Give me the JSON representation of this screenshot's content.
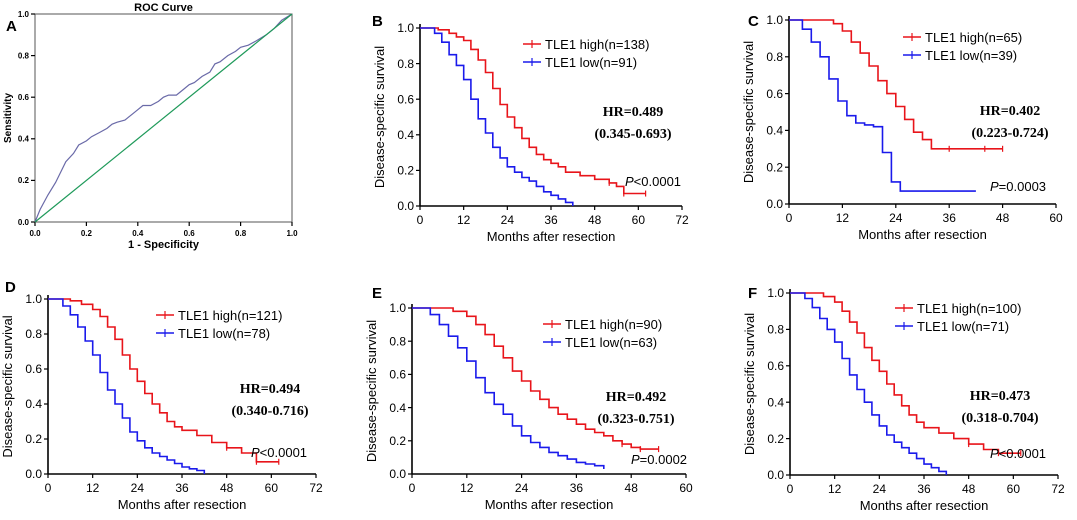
{
  "colors": {
    "high": "#e8141a",
    "low": "#1a1aeb",
    "roc": "#6a6aa8",
    "diag": "#1f9a5a",
    "axis": "#000000"
  },
  "panels": [
    {
      "letter": "A",
      "chart_data": {
        "type": "line",
        "title": "ROC Curve",
        "xlabel": "1 - Specificity",
        "ylabel": "Sensitivity",
        "xlim": [
          0,
          1
        ],
        "ylim": [
          0,
          1
        ],
        "xticks": [
          "0.0",
          "0.2",
          "0.4",
          "0.6",
          "0.8",
          "1.0"
        ],
        "yticks": [
          "0.0",
          "0.2",
          "0.4",
          "0.6",
          "0.8",
          "1.0"
        ],
        "series": [
          {
            "name": "ROC",
            "color": "roc",
            "x": [
              0,
              0.02,
              0.05,
              0.08,
              0.1,
              0.12,
              0.15,
              0.17,
              0.2,
              0.22,
              0.25,
              0.28,
              0.3,
              0.32,
              0.35,
              0.38,
              0.4,
              0.42,
              0.45,
              0.48,
              0.5,
              0.52,
              0.55,
              0.58,
              0.6,
              0.62,
              0.65,
              0.68,
              0.7,
              0.72,
              0.75,
              0.78,
              0.8,
              0.83,
              0.86,
              0.9,
              0.93,
              0.96,
              1.0
            ],
            "y": [
              0,
              0.06,
              0.13,
              0.19,
              0.24,
              0.29,
              0.33,
              0.37,
              0.39,
              0.41,
              0.43,
              0.45,
              0.47,
              0.48,
              0.49,
              0.52,
              0.54,
              0.56,
              0.56,
              0.58,
              0.6,
              0.61,
              0.61,
              0.64,
              0.66,
              0.67,
              0.7,
              0.72,
              0.76,
              0.77,
              0.8,
              0.82,
              0.84,
              0.85,
              0.87,
              0.9,
              0.93,
              0.97,
              1.0
            ]
          },
          {
            "name": "Reference",
            "color": "diag",
            "x": [
              0,
              1
            ],
            "y": [
              0,
              1
            ]
          }
        ]
      }
    },
    {
      "letter": "B",
      "chart_data": {
        "type": "line",
        "xlabel": "Months after resection",
        "ylabel": "Disease-specific survival",
        "xlim": [
          0,
          72
        ],
        "ylim": [
          0,
          1
        ],
        "xticks": [
          0,
          12,
          24,
          36,
          48,
          60,
          72
        ],
        "yticks": [
          "0.0",
          "0.2",
          "0.4",
          "0.6",
          "0.8",
          "1.0"
        ],
        "legend": [
          "TLE1 high(n=138)",
          "TLE1 low(n=91)"
        ],
        "hr": "HR=0.489",
        "ci": "(0.345-0.693)",
        "p": "<0.0001",
        "series": [
          {
            "name": "TLE1 high(n=138)",
            "color": "high",
            "x": [
              0,
              5,
              8,
              10,
              12,
              14,
              16,
              18,
              20,
              22,
              24,
              26,
              28,
              30,
              32,
              34,
              36,
              38,
              40,
              44,
              48,
              52,
              54,
              56,
              62
            ],
            "y": [
              1,
              0.99,
              0.97,
              0.95,
              0.93,
              0.88,
              0.82,
              0.75,
              0.66,
              0.57,
              0.5,
              0.44,
              0.38,
              0.33,
              0.29,
              0.26,
              0.24,
              0.22,
              0.19,
              0.17,
              0.15,
              0.13,
              0.11,
              0.07,
              0.07
            ]
          },
          {
            "name": "TLE1 low(n=91)",
            "color": "low",
            "x": [
              0,
              4,
              6,
              8,
              10,
              12,
              14,
              16,
              18,
              20,
              22,
              24,
              26,
              28,
              30,
              32,
              34,
              36,
              38,
              40,
              42
            ],
            "y": [
              1,
              0.97,
              0.92,
              0.85,
              0.79,
              0.71,
              0.6,
              0.49,
              0.41,
              0.33,
              0.27,
              0.22,
              0.19,
              0.16,
              0.14,
              0.11,
              0.08,
              0.06,
              0.04,
              0.02,
              0
            ]
          }
        ]
      }
    },
    {
      "letter": "C",
      "chart_data": {
        "type": "line",
        "xlabel": "Months after resection",
        "ylabel": "Disease-specific survival",
        "xlim": [
          0,
          60
        ],
        "ylim": [
          0,
          1
        ],
        "xticks": [
          0,
          12,
          24,
          36,
          48,
          60
        ],
        "yticks": [
          "0.0",
          "0.2",
          "0.4",
          "0.6",
          "0.8",
          "1.0"
        ],
        "legend": [
          "TLE1 high(n=65)",
          "TLE1 low(n=39)"
        ],
        "hr": "HR=0.402",
        "ci": "(0.223-0.724)",
        "p": "=0.0003",
        "series": [
          {
            "name": "TLE1 high(n=65)",
            "color": "high",
            "x": [
              0,
              8,
              10,
              12,
              14,
              16,
              18,
              20,
              22,
              24,
              26,
              28,
              30,
              32,
              36,
              40,
              44,
              48
            ],
            "y": [
              1,
              1,
              0.98,
              0.94,
              0.88,
              0.82,
              0.75,
              0.67,
              0.6,
              0.53,
              0.46,
              0.39,
              0.35,
              0.3,
              0.3,
              0.3,
              0.3,
              0.3
            ]
          },
          {
            "name": "TLE1 low(n=39)",
            "color": "low",
            "x": [
              0,
              3,
              5,
              7,
              9,
              11,
              13,
              15,
              17,
              19,
              21,
              23,
              25,
              27,
              30,
              36,
              42
            ],
            "y": [
              1,
              0.95,
              0.88,
              0.8,
              0.68,
              0.56,
              0.48,
              0.44,
              0.43,
              0.42,
              0.28,
              0.12,
              0.07,
              0.07,
              0.07,
              0.07,
              0.07
            ]
          }
        ]
      }
    },
    {
      "letter": "D",
      "chart_data": {
        "type": "line",
        "xlabel": "Months after resection",
        "ylabel": "Disease-specific survival",
        "xlim": [
          0,
          72
        ],
        "ylim": [
          0,
          1
        ],
        "xticks": [
          0,
          12,
          24,
          36,
          48,
          60,
          72
        ],
        "yticks": [
          "0.0",
          "0.2",
          "0.4",
          "0.6",
          "0.8",
          "1.0"
        ],
        "legend": [
          "TLE1 high(n=121)",
          "TLE1 low(n=78)"
        ],
        "hr": "HR=0.494",
        "ci": "(0.340-0.716)",
        "p": "<0.0001",
        "series": [
          {
            "name": "TLE1 high(n=121)",
            "color": "high",
            "x": [
              0,
              6,
              9,
              12,
              14,
              16,
              18,
              20,
              22,
              24,
              26,
              28,
              30,
              32,
              34,
              36,
              40,
              44,
              48,
              52,
              56,
              62
            ],
            "y": [
              1,
              0.99,
              0.97,
              0.94,
              0.9,
              0.84,
              0.77,
              0.68,
              0.6,
              0.53,
              0.46,
              0.4,
              0.35,
              0.3,
              0.27,
              0.25,
              0.22,
              0.18,
              0.15,
              0.12,
              0.07,
              0.07
            ]
          },
          {
            "name": "TLE1 low(n=78)",
            "color": "low",
            "x": [
              0,
              4,
              6,
              8,
              10,
              12,
              14,
              16,
              18,
              20,
              22,
              24,
              26,
              28,
              30,
              32,
              34,
              36,
              38,
              40,
              42
            ],
            "y": [
              1,
              0.96,
              0.91,
              0.84,
              0.76,
              0.68,
              0.58,
              0.48,
              0.4,
              0.32,
              0.24,
              0.19,
              0.15,
              0.12,
              0.1,
              0.08,
              0.06,
              0.04,
              0.03,
              0.02,
              0
            ]
          }
        ]
      }
    },
    {
      "letter": "E",
      "chart_data": {
        "type": "line",
        "xlabel": "Months after resection",
        "ylabel": "Disease-specific survival",
        "xlim": [
          0,
          60
        ],
        "ylim": [
          0,
          1
        ],
        "xticks": [
          0,
          12,
          24,
          36,
          48,
          60
        ],
        "yticks": [
          "0.0",
          "0.2",
          "0.4",
          "0.6",
          "0.8",
          "1.0"
        ],
        "legend": [
          "TLE1 high(n=90)",
          "TLE1 low(n=63)"
        ],
        "hr": "HR=0.492",
        "ci": "(0.323-0.751)",
        "p": "=0.0002",
        "series": [
          {
            "name": "TLE1 high(n=90)",
            "color": "high",
            "x": [
              0,
              6,
              9,
              12,
              14,
              16,
              18,
              20,
              22,
              24,
              26,
              28,
              30,
              32,
              34,
              36,
              38,
              40,
              42,
              44,
              46,
              48,
              50,
              54
            ],
            "y": [
              1,
              1,
              0.98,
              0.95,
              0.9,
              0.84,
              0.77,
              0.7,
              0.62,
              0.56,
              0.5,
              0.45,
              0.4,
              0.36,
              0.33,
              0.3,
              0.27,
              0.25,
              0.23,
              0.2,
              0.18,
              0.16,
              0.15,
              0.15
            ]
          },
          {
            "name": "TLE1 low(n=63)",
            "color": "low",
            "x": [
              0,
              4,
              6,
              8,
              10,
              12,
              14,
              16,
              18,
              20,
              22,
              24,
              26,
              28,
              30,
              32,
              34,
              36,
              38,
              40,
              42
            ],
            "y": [
              1,
              0.96,
              0.9,
              0.83,
              0.76,
              0.68,
              0.58,
              0.49,
              0.42,
              0.36,
              0.29,
              0.23,
              0.19,
              0.16,
              0.13,
              0.11,
              0.09,
              0.07,
              0.06,
              0.05,
              0.03
            ]
          }
        ]
      }
    },
    {
      "letter": "F",
      "chart_data": {
        "type": "line",
        "xlabel": "Months after resection",
        "ylabel": "Disease-specific survival",
        "xlim": [
          0,
          72
        ],
        "ylim": [
          0,
          1
        ],
        "xticks": [
          0,
          12,
          24,
          36,
          48,
          60,
          72
        ],
        "yticks": [
          "0.0",
          "0.2",
          "0.4",
          "0.6",
          "0.8",
          "1.0"
        ],
        "legend": [
          "TLE1 high(n=100)",
          "TLE1 low(n=71)"
        ],
        "hr": "HR=0.473",
        "ci": "(0.318-0.704)",
        "p": "<0.0001",
        "series": [
          {
            "name": "TLE1 high(n=100)",
            "color": "high",
            "x": [
              0,
              6,
              9,
              12,
              14,
              16,
              18,
              20,
              22,
              24,
              26,
              28,
              30,
              32,
              34,
              36,
              40,
              44,
              48,
              52,
              56,
              62
            ],
            "y": [
              1,
              1,
              0.98,
              0.95,
              0.9,
              0.84,
              0.78,
              0.7,
              0.63,
              0.57,
              0.5,
              0.44,
              0.38,
              0.33,
              0.29,
              0.26,
              0.23,
              0.2,
              0.17,
              0.14,
              0.12,
              0.12
            ]
          },
          {
            "name": "TLE1 low(n=71)",
            "color": "low",
            "x": [
              0,
              4,
              6,
              8,
              10,
              12,
              14,
              16,
              18,
              20,
              22,
              24,
              26,
              28,
              30,
              32,
              34,
              36,
              38,
              40,
              42
            ],
            "y": [
              1,
              0.97,
              0.92,
              0.86,
              0.8,
              0.73,
              0.64,
              0.55,
              0.47,
              0.4,
              0.33,
              0.27,
              0.22,
              0.18,
              0.15,
              0.12,
              0.09,
              0.06,
              0.04,
              0.02,
              0
            ]
          }
        ]
      }
    }
  ]
}
